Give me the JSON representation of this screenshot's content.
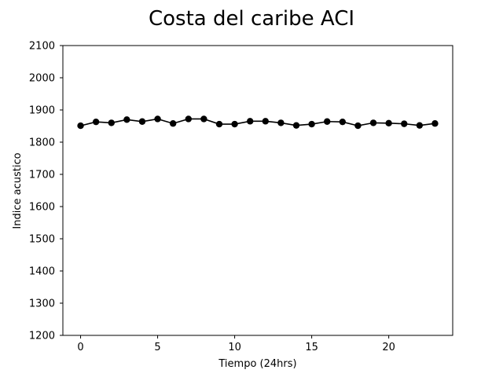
{
  "chart_data": {
    "type": "line",
    "title": "Costa del caribe ACI",
    "xlabel": "Tiempo (24hrs)",
    "ylabel": "Indice acustico",
    "xlim": [
      -1.15,
      24.15
    ],
    "ylim": [
      1200,
      2100
    ],
    "xticks": [
      0,
      5,
      10,
      15,
      20
    ],
    "yticks": [
      1200,
      1300,
      1400,
      1500,
      1600,
      1700,
      1800,
      1900,
      2000,
      2100
    ],
    "grid": false,
    "series": [
      {
        "color": "#000000",
        "marker": "circle",
        "x": [
          0,
          1,
          2,
          3,
          4,
          5,
          6,
          7,
          8,
          9,
          10,
          11,
          12,
          13,
          14,
          15,
          16,
          17,
          18,
          19,
          20,
          21,
          22,
          23
        ],
        "y": [
          1851,
          1863,
          1860,
          1870,
          1864,
          1872,
          1858,
          1872,
          1872,
          1856,
          1856,
          1865,
          1865,
          1860,
          1852,
          1856,
          1864,
          1863,
          1851,
          1860,
          1859,
          1857,
          1852,
          1858
        ]
      }
    ]
  }
}
